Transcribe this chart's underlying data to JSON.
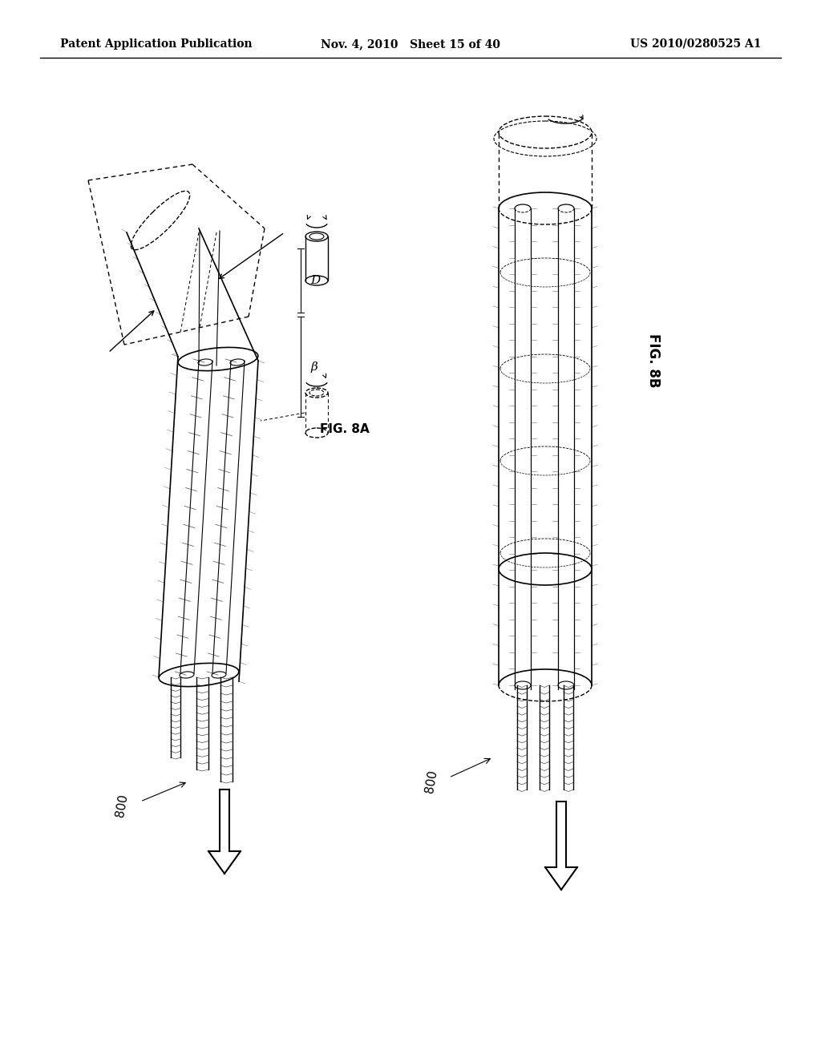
{
  "header_left": "Patent Application Publication",
  "header_center": "Nov. 4, 2010   Sheet 15 of 40",
  "header_right": "US 2010/0280525 A1",
  "fig_label_left": "FIG. 8A",
  "fig_label_right": "FIG. 8B",
  "ref_800_left": "800",
  "ref_800_right": "800",
  "background": "#ffffff",
  "line_color": "#000000",
  "label_D": "D",
  "label_beta": "β"
}
